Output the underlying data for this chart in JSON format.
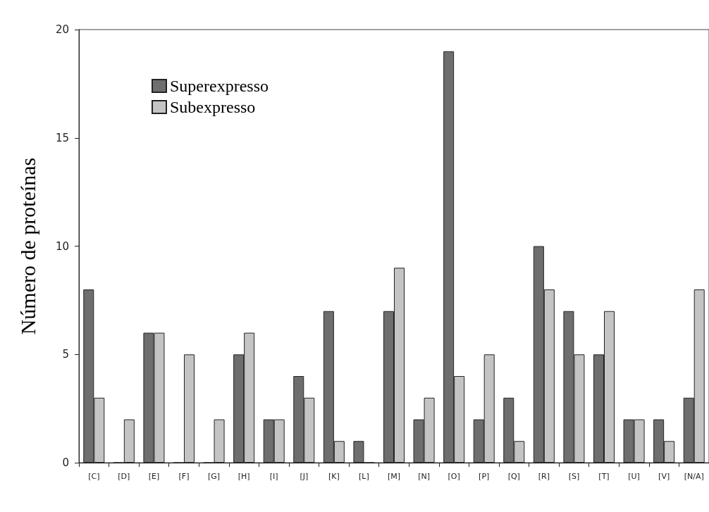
{
  "chart_data": {
    "type": "bar",
    "ylabel": "Número de proteínas",
    "categories": [
      "[C]",
      "[D]",
      "[E]",
      "[F]",
      "[G]",
      "[H]",
      "[I]",
      "[J]",
      "[K]",
      "[L]",
      "[M]",
      "[N]",
      "[O]",
      "[P]",
      "[Q]",
      "[R]",
      "[S]",
      "[T]",
      "[U]",
      "[V]",
      "[N/A]"
    ],
    "series": [
      {
        "name": "Superexpresso",
        "color": "#6e6e6e",
        "values": [
          8,
          0,
          6,
          0,
          0,
          5,
          2,
          4,
          7,
          1,
          7,
          2,
          19,
          2,
          3,
          10,
          7,
          5,
          2,
          2,
          3
        ]
      },
      {
        "name": "Subexpresso",
        "color": "#c4c4c4",
        "values": [
          3,
          2,
          6,
          5,
          2,
          6,
          2,
          3,
          1,
          0,
          9,
          3,
          4,
          5,
          1,
          8,
          5,
          7,
          2,
          1,
          8
        ]
      }
    ],
    "ylim": [
      0,
      20
    ],
    "yticks": [
      0,
      5,
      10,
      15,
      20
    ],
    "grid": false,
    "legend": "top left"
  }
}
